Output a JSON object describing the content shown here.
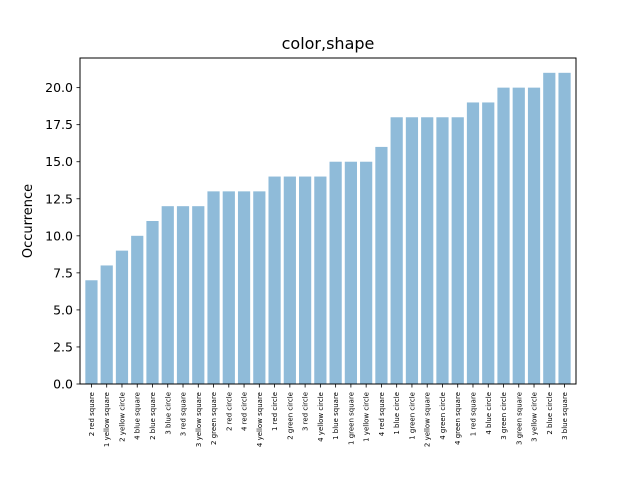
{
  "chart_data": {
    "type": "bar",
    "title": "color,shape",
    "xlabel": "",
    "ylabel": "Occurrence",
    "ylim": [
      0,
      22
    ],
    "yticks": [
      0.0,
      2.5,
      5.0,
      7.5,
      10.0,
      12.5,
      15.0,
      17.5,
      20.0
    ],
    "ytick_labels": [
      "0.0",
      "2.5",
      "5.0",
      "7.5",
      "10.0",
      "12.5",
      "15.0",
      "17.5",
      "20.0"
    ],
    "grid": false,
    "bar_color": "#8fbbd9",
    "categories": [
      "2 red square",
      "1 yellow square",
      "2 yellow circle",
      "4 blue square",
      "2 blue square",
      "3 blue circle",
      "3 red square",
      "3 yellow square",
      "2 green square",
      "2 red circle",
      "4 red circle",
      "4 yellow square",
      "1 red circle",
      "2 green circle",
      "3 red circle",
      "4 yellow circle",
      "1 blue square",
      "1 green square",
      "1 yellow circle",
      "4 red square",
      "1 blue circle",
      "1 green circle",
      "2 yellow square",
      "4 green circle",
      "4 green square",
      "1 red square",
      "4 blue circle",
      "3 green circle",
      "3 green square",
      "3 yellow circle",
      "2 blue circle",
      "3 blue square"
    ],
    "values": [
      7,
      8,
      9,
      10,
      11,
      12,
      12,
      12,
      13,
      13,
      13,
      13,
      14,
      14,
      14,
      14,
      15,
      15,
      15,
      16,
      18,
      18,
      18,
      18,
      18,
      19,
      19,
      20,
      20,
      20,
      21,
      21
    ]
  }
}
